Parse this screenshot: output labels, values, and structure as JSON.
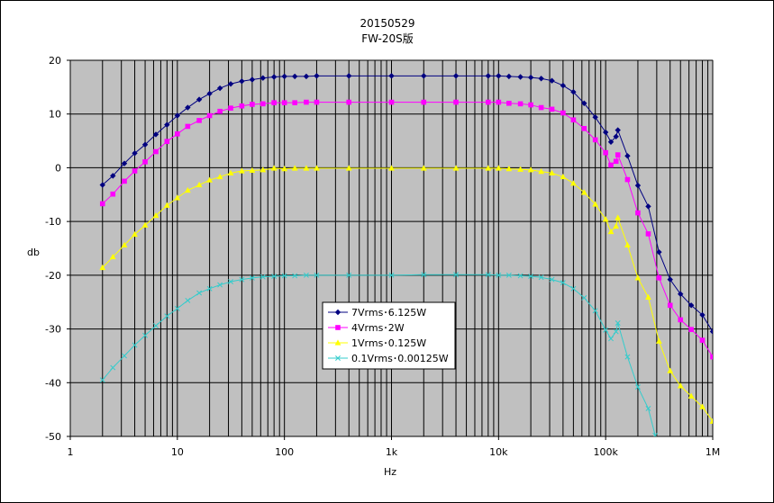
{
  "chart_data": {
    "type": "line",
    "title": "20150529",
    "subtitle": "FW-20S版",
    "xlabel": "Hz",
    "ylabel": "db",
    "xscale": "log",
    "xlim": [
      1,
      1000000
    ],
    "ylim": [
      -50,
      20
    ],
    "x_tick_labels": [
      "1",
      "10",
      "100",
      "1k",
      "10k",
      "100k",
      "1M"
    ],
    "x_tick_values": [
      1,
      10,
      100,
      1000,
      10000,
      100000,
      1000000
    ],
    "y_ticks": [
      20,
      10,
      0,
      -10,
      -20,
      -30,
      -40,
      -50
    ],
    "grid": true,
    "legend_position": "center-left",
    "plot_background": "#c0c0c0",
    "series": [
      {
        "name": "7Vrms･6.125W",
        "color": "#000080",
        "marker": "diamond",
        "x": [
          2,
          2.5,
          3.2,
          4,
          5,
          6.3,
          8,
          10,
          12.5,
          16,
          20,
          25,
          31.5,
          40,
          50,
          63,
          80,
          100,
          125,
          160,
          200,
          400,
          1000,
          2000,
          4000,
          8000,
          10000,
          12500,
          16000,
          20000,
          25000,
          31500,
          40000,
          50000,
          63000,
          80000,
          100000,
          112000,
          125000,
          130000,
          160000,
          200000,
          250000,
          315000,
          400000,
          500000,
          630000,
          800000,
          1000000
        ],
        "y": [
          -3.2,
          -1.5,
          0.8,
          2.7,
          4.3,
          6.2,
          8.0,
          9.7,
          11.2,
          12.7,
          13.8,
          14.8,
          15.6,
          16.1,
          16.4,
          16.7,
          16.9,
          17.0,
          17.0,
          17.0,
          17.1,
          17.1,
          17.1,
          17.1,
          17.1,
          17.1,
          17.1,
          17.0,
          16.9,
          16.8,
          16.6,
          16.2,
          15.3,
          14.1,
          12.0,
          9.4,
          6.6,
          4.8,
          5.8,
          7.0,
          2.2,
          -3.3,
          -7.2,
          -15.7,
          -20.8,
          -23.5,
          -25.6,
          -27.4,
          -30.5
        ]
      },
      {
        "name": "4Vrms･2W",
        "color": "#ff00ff",
        "marker": "square",
        "x": [
          2,
          2.5,
          3.2,
          4,
          5,
          6.3,
          8,
          10,
          12.5,
          16,
          20,
          25,
          31.5,
          40,
          50,
          63,
          80,
          100,
          125,
          160,
          200,
          400,
          1000,
          2000,
          4000,
          8000,
          10000,
          12500,
          16000,
          20000,
          25000,
          31500,
          40000,
          50000,
          63000,
          80000,
          100000,
          112000,
          125000,
          130000,
          160000,
          200000,
          250000,
          315000,
          400000,
          500000,
          630000,
          800000,
          1000000
        ],
        "y": [
          -6.7,
          -4.9,
          -2.5,
          -0.6,
          1.1,
          3.0,
          4.9,
          6.3,
          7.7,
          8.8,
          9.7,
          10.5,
          11.1,
          11.5,
          11.8,
          11.9,
          12.1,
          12.1,
          12.1,
          12.2,
          12.2,
          12.2,
          12.2,
          12.2,
          12.2,
          12.2,
          12.2,
          12.0,
          11.9,
          11.7,
          11.2,
          10.9,
          10.2,
          8.9,
          7.3,
          5.2,
          2.8,
          0.5,
          1.2,
          2.4,
          -2.2,
          -8.4,
          -12.3,
          -20.5,
          -25.6,
          -28.3,
          -30.1,
          -32.1,
          -35.2
        ]
      },
      {
        "name": "1Vrms･0.125W",
        "color": "#ffff00",
        "marker": "triangle",
        "x": [
          2,
          2.5,
          3.2,
          4,
          5,
          6.3,
          8,
          10,
          12.5,
          16,
          20,
          25,
          31.5,
          40,
          50,
          63,
          80,
          100,
          125,
          160,
          200,
          400,
          1000,
          2000,
          4000,
          8000,
          10000,
          12500,
          16000,
          20000,
          25000,
          31500,
          40000,
          50000,
          63000,
          80000,
          100000,
          112000,
          125000,
          130000,
          160000,
          200000,
          250000,
          315000,
          400000,
          500000,
          630000,
          800000,
          1000000
        ],
        "y": [
          -18.6,
          -16.6,
          -14.4,
          -12.4,
          -10.7,
          -8.9,
          -7.0,
          -5.6,
          -4.2,
          -3.2,
          -2.3,
          -1.7,
          -1.0,
          -0.6,
          -0.5,
          -0.4,
          -0.1,
          -0.2,
          -0.1,
          -0.1,
          -0.1,
          -0.1,
          -0.1,
          -0.1,
          -0.1,
          -0.1,
          -0.1,
          -0.2,
          -0.3,
          -0.4,
          -0.7,
          -1.0,
          -1.7,
          -2.9,
          -4.6,
          -6.8,
          -9.6,
          -11.9,
          -10.9,
          -9.3,
          -14.4,
          -20.5,
          -24.1,
          -32.3,
          -37.8,
          -40.6,
          -42.5,
          -44.5,
          -47.2
        ]
      },
      {
        "name": "0.1Vrms･0.00125W",
        "color": "#33cccc",
        "marker": "x",
        "x": [
          2,
          2.5,
          3.2,
          4,
          5,
          6.3,
          8,
          10,
          12.5,
          16,
          20,
          25,
          31.5,
          40,
          50,
          63,
          80,
          100,
          125,
          160,
          200,
          400,
          1000,
          2000,
          4000,
          8000,
          10000,
          12500,
          16000,
          20000,
          25000,
          31500,
          40000,
          50000,
          63000,
          80000,
          100000,
          112000,
          125000,
          130000,
          160000,
          200000,
          250000,
          290000
        ],
        "y": [
          -39.5,
          -37.2,
          -35.0,
          -33.0,
          -31.2,
          -29.4,
          -27.6,
          -26.2,
          -24.7,
          -23.3,
          -22.5,
          -21.8,
          -21.2,
          -20.8,
          -20.5,
          -20.3,
          -20.2,
          -20.1,
          -20.1,
          -20.0,
          -20.0,
          -20.0,
          -20.0,
          -19.9,
          -19.9,
          -19.9,
          -20.0,
          -20.0,
          -20.1,
          -20.2,
          -20.4,
          -20.8,
          -21.4,
          -22.5,
          -24.2,
          -26.6,
          -30.2,
          -31.8,
          -30.5,
          -28.9,
          -35.2,
          -40.8,
          -44.8,
          -49.8
        ]
      }
    ]
  }
}
